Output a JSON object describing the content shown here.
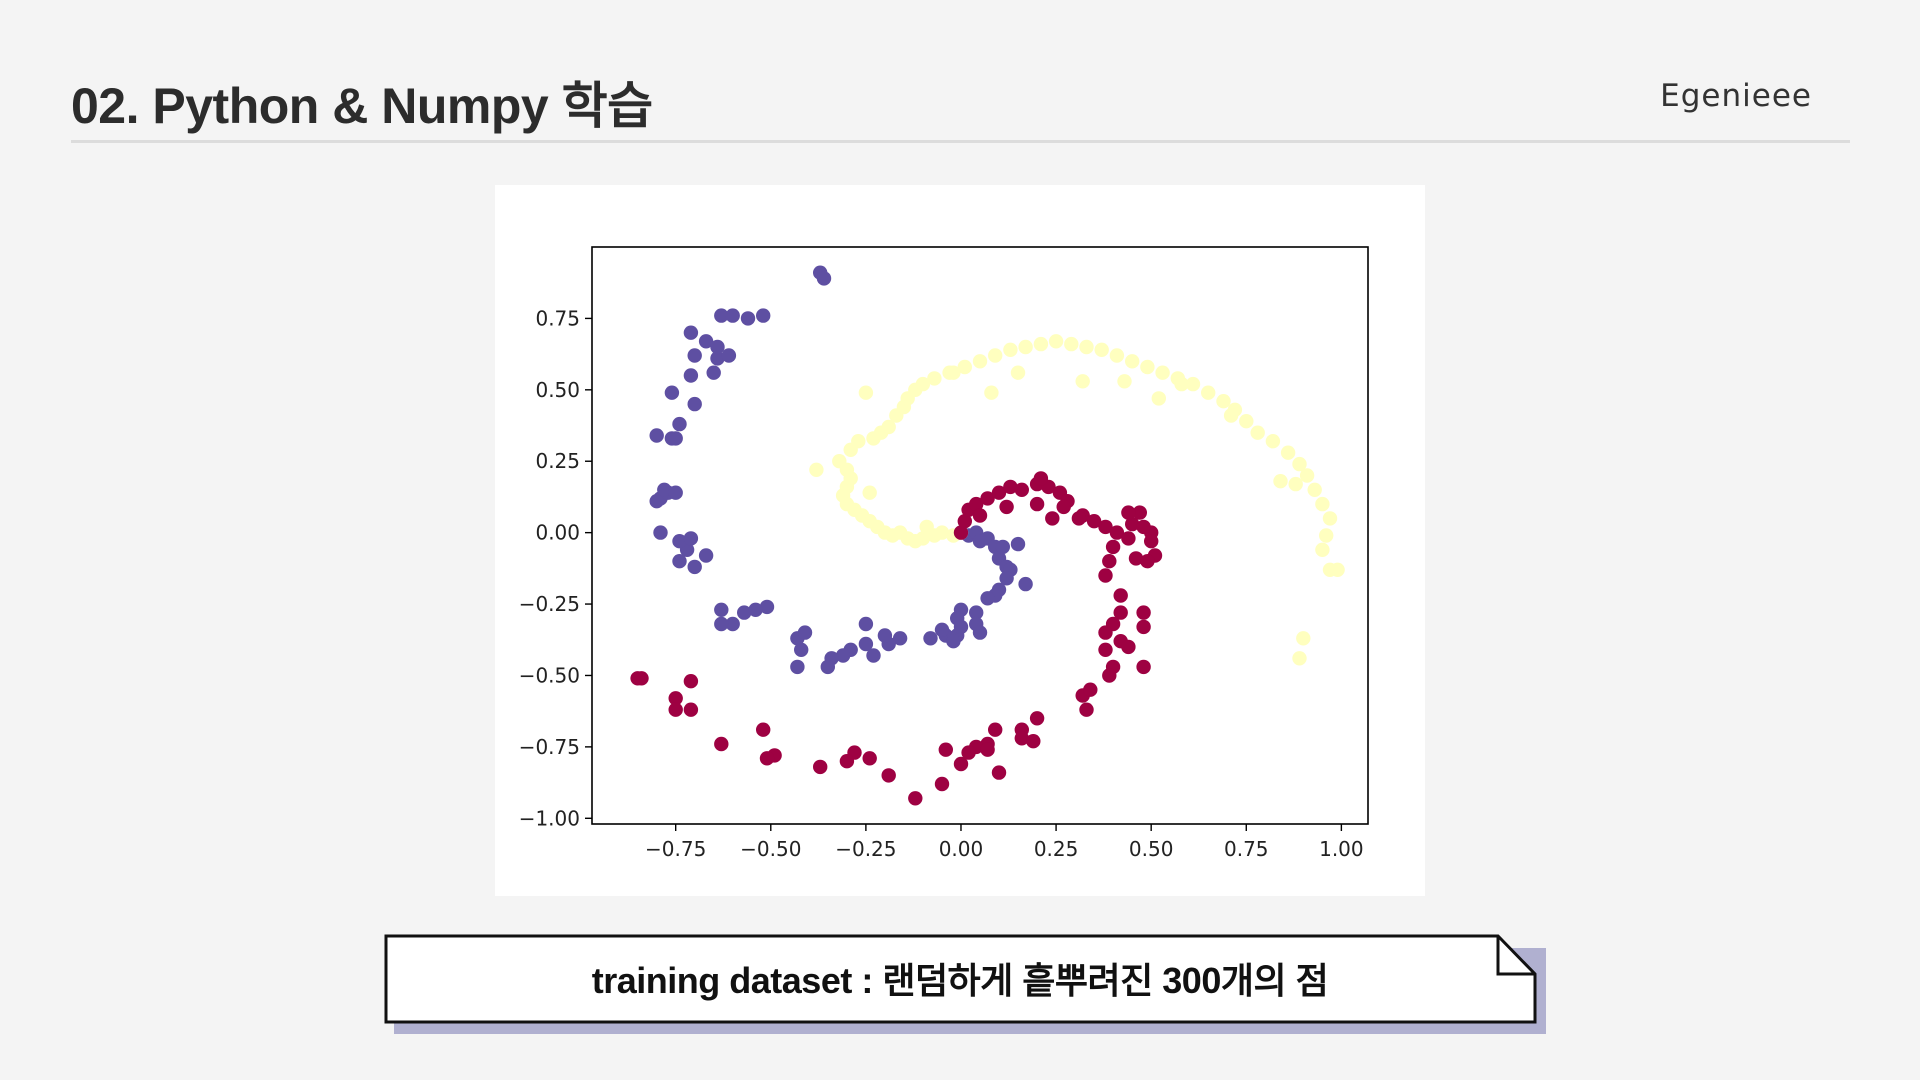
{
  "header": {
    "title": "02. Python & Numpy 학습",
    "brand": "Egenieee"
  },
  "caption": {
    "text": "training dataset : 랜덤하게 흩뿌려진 300개의 점"
  },
  "colors": {
    "background": "#f4f4f4",
    "purple": "#5e4fa2",
    "yellow": "#ffffbf",
    "crimson": "#9e0142",
    "caption_shadow": "#b0b0d0"
  },
  "chart_data": {
    "type": "scatter",
    "title": "",
    "xlabel": "",
    "ylabel": "",
    "xlim": [
      -0.97,
      1.07
    ],
    "ylim": [
      -1.02,
      1.0
    ],
    "xticks": [
      -0.75,
      -0.5,
      -0.25,
      0.0,
      0.25,
      0.5,
      0.75,
      1.0
    ],
    "xtick_labels": [
      "−0.75",
      "−0.50",
      "−0.25",
      "0.00",
      "0.25",
      "0.50",
      "0.75",
      "1.00"
    ],
    "yticks": [
      0.75,
      0.5,
      0.25,
      0.0,
      -0.25,
      -0.5,
      -0.75,
      -1.0
    ],
    "ytick_labels": [
      "0.75",
      "0.50",
      "0.25",
      "0.00",
      "−0.25",
      "−0.50",
      "−0.75",
      "−1.00"
    ],
    "grid": false,
    "series": [
      {
        "color": "#5e4fa2",
        "points": [
          [
            0.0,
            0.0
          ],
          [
            0.02,
            -0.01
          ],
          [
            0.04,
            0.0
          ],
          [
            0.05,
            -0.03
          ],
          [
            0.07,
            -0.02
          ],
          [
            0.09,
            -0.05
          ],
          [
            0.1,
            -0.09
          ],
          [
            0.11,
            -0.05
          ],
          [
            0.12,
            -0.12
          ],
          [
            0.13,
            -0.13
          ],
          [
            0.15,
            -0.04
          ],
          [
            0.17,
            -0.18
          ],
          [
            0.12,
            -0.16
          ],
          [
            0.1,
            -0.2
          ],
          [
            0.09,
            -0.22
          ],
          [
            0.07,
            -0.23
          ],
          [
            0.04,
            -0.28
          ],
          [
            0.0,
            -0.27
          ],
          [
            -0.01,
            -0.3
          ],
          [
            0.04,
            -0.32
          ],
          [
            0.05,
            -0.35
          ],
          [
            -0.01,
            -0.36
          ],
          [
            -0.04,
            -0.36
          ],
          [
            -0.05,
            -0.34
          ],
          [
            -0.02,
            -0.38
          ],
          [
            0.0,
            -0.33
          ],
          [
            -0.08,
            -0.37
          ],
          [
            -0.16,
            -0.37
          ],
          [
            -0.19,
            -0.39
          ],
          [
            -0.2,
            -0.36
          ],
          [
            -0.23,
            -0.43
          ],
          [
            -0.25,
            -0.39
          ],
          [
            -0.25,
            -0.32
          ],
          [
            -0.29,
            -0.41
          ],
          [
            -0.31,
            -0.43
          ],
          [
            -0.34,
            -0.44
          ],
          [
            -0.35,
            -0.47
          ],
          [
            -0.43,
            -0.47
          ],
          [
            -0.42,
            -0.41
          ],
          [
            -0.43,
            -0.37
          ],
          [
            -0.41,
            -0.35
          ],
          [
            -0.51,
            -0.26
          ],
          [
            -0.54,
            -0.27
          ],
          [
            -0.57,
            -0.28
          ],
          [
            -0.6,
            -0.32
          ],
          [
            -0.63,
            -0.27
          ],
          [
            -0.63,
            -0.32
          ],
          [
            -0.74,
            -0.1
          ],
          [
            -0.7,
            -0.12
          ],
          [
            -0.67,
            -0.08
          ],
          [
            -0.72,
            -0.06
          ],
          [
            -0.74,
            -0.03
          ],
          [
            -0.71,
            -0.02
          ],
          [
            -0.79,
            0.0
          ],
          [
            -0.77,
            0.14
          ],
          [
            -0.79,
            0.12
          ],
          [
            -0.8,
            0.11
          ],
          [
            -0.78,
            0.15
          ],
          [
            -0.75,
            0.14
          ],
          [
            -0.76,
            0.33
          ],
          [
            -0.74,
            0.38
          ],
          [
            -0.75,
            0.33
          ],
          [
            -0.8,
            0.34
          ],
          [
            -0.7,
            0.45
          ],
          [
            -0.76,
            0.49
          ],
          [
            -0.7,
            0.62
          ],
          [
            -0.71,
            0.55
          ],
          [
            -0.65,
            0.56
          ],
          [
            -0.64,
            0.61
          ],
          [
            -0.67,
            0.67
          ],
          [
            -0.64,
            0.65
          ],
          [
            -0.71,
            0.7
          ],
          [
            -0.63,
            0.76
          ],
          [
            -0.6,
            0.76
          ],
          [
            -0.56,
            0.75
          ],
          [
            -0.52,
            0.76
          ],
          [
            -0.37,
            0.91
          ],
          [
            -0.36,
            0.89
          ],
          [
            -0.61,
            0.62
          ]
        ]
      },
      {
        "color": "#ffffbf",
        "points": [
          [
            0.0,
            0.0
          ],
          [
            -0.02,
            -0.01
          ],
          [
            -0.05,
            0.0
          ],
          [
            -0.07,
            -0.01
          ],
          [
            -0.1,
            -0.02
          ],
          [
            -0.12,
            -0.03
          ],
          [
            -0.14,
            -0.02
          ],
          [
            -0.16,
            0.0
          ],
          [
            -0.18,
            -0.01
          ],
          [
            -0.2,
            0.0
          ],
          [
            -0.22,
            0.02
          ],
          [
            -0.24,
            0.04
          ],
          [
            -0.26,
            0.06
          ],
          [
            -0.28,
            0.08
          ],
          [
            -0.3,
            0.1
          ],
          [
            -0.31,
            0.13
          ],
          [
            -0.3,
            0.16
          ],
          [
            -0.29,
            0.19
          ],
          [
            -0.3,
            0.22
          ],
          [
            -0.32,
            0.25
          ],
          [
            -0.29,
            0.29
          ],
          [
            -0.27,
            0.32
          ],
          [
            -0.23,
            0.33
          ],
          [
            -0.21,
            0.35
          ],
          [
            -0.19,
            0.37
          ],
          [
            -0.17,
            0.41
          ],
          [
            -0.15,
            0.44
          ],
          [
            -0.14,
            0.47
          ],
          [
            -0.12,
            0.5
          ],
          [
            -0.1,
            0.52
          ],
          [
            -0.07,
            0.54
          ],
          [
            -0.03,
            0.56
          ],
          [
            0.01,
            0.58
          ],
          [
            0.05,
            0.6
          ],
          [
            0.09,
            0.62
          ],
          [
            0.13,
            0.64
          ],
          [
            0.17,
            0.65
          ],
          [
            0.21,
            0.66
          ],
          [
            0.25,
            0.67
          ],
          [
            0.29,
            0.66
          ],
          [
            0.33,
            0.65
          ],
          [
            0.37,
            0.64
          ],
          [
            0.41,
            0.62
          ],
          [
            0.45,
            0.6
          ],
          [
            0.49,
            0.58
          ],
          [
            0.53,
            0.56
          ],
          [
            0.57,
            0.54
          ],
          [
            0.61,
            0.52
          ],
          [
            0.65,
            0.49
          ],
          [
            0.69,
            0.46
          ],
          [
            0.72,
            0.43
          ],
          [
            0.75,
            0.39
          ],
          [
            0.78,
            0.35
          ],
          [
            0.82,
            0.32
          ],
          [
            0.86,
            0.28
          ],
          [
            0.89,
            0.24
          ],
          [
            0.91,
            0.2
          ],
          [
            0.93,
            0.15
          ],
          [
            0.95,
            0.1
          ],
          [
            0.97,
            0.05
          ],
          [
            0.96,
            -0.01
          ],
          [
            0.95,
            -0.06
          ],
          [
            0.97,
            -0.13
          ],
          [
            0.99,
            -0.13
          ],
          [
            0.9,
            -0.37
          ],
          [
            0.89,
            -0.44
          ],
          [
            -0.38,
            0.22
          ],
          [
            -0.25,
            0.49
          ],
          [
            0.08,
            0.49
          ],
          [
            0.32,
            0.53
          ],
          [
            0.52,
            0.47
          ],
          [
            0.71,
            0.41
          ],
          [
            0.84,
            0.18
          ],
          [
            0.88,
            0.17
          ],
          [
            -0.02,
            0.56
          ],
          [
            0.15,
            0.56
          ],
          [
            0.43,
            0.53
          ],
          [
            0.58,
            0.52
          ],
          [
            -0.24,
            0.14
          ],
          [
            -0.09,
            0.02
          ]
        ]
      },
      {
        "color": "#9e0142",
        "points": [
          [
            0.0,
            0.0
          ],
          [
            0.01,
            0.04
          ],
          [
            0.02,
            0.08
          ],
          [
            0.04,
            0.1
          ],
          [
            0.07,
            0.12
          ],
          [
            0.1,
            0.14
          ],
          [
            0.13,
            0.16
          ],
          [
            0.16,
            0.15
          ],
          [
            0.2,
            0.17
          ],
          [
            0.23,
            0.16
          ],
          [
            0.26,
            0.14
          ],
          [
            0.28,
            0.11
          ],
          [
            0.32,
            0.06
          ],
          [
            0.35,
            0.04
          ],
          [
            0.38,
            0.02
          ],
          [
            0.41,
            0.0
          ],
          [
            0.45,
            0.03
          ],
          [
            0.47,
            0.07
          ],
          [
            0.5,
            0.0
          ],
          [
            0.5,
            -0.03
          ],
          [
            0.51,
            -0.08
          ],
          [
            0.46,
            -0.09
          ],
          [
            0.49,
            -0.1
          ],
          [
            0.39,
            -0.1
          ],
          [
            0.38,
            -0.15
          ],
          [
            0.42,
            -0.22
          ],
          [
            0.42,
            -0.28
          ],
          [
            0.48,
            -0.28
          ],
          [
            0.48,
            -0.33
          ],
          [
            0.4,
            -0.32
          ],
          [
            0.42,
            -0.38
          ],
          [
            0.38,
            -0.41
          ],
          [
            0.4,
            -0.47
          ],
          [
            0.39,
            -0.5
          ],
          [
            0.48,
            -0.47
          ],
          [
            0.32,
            -0.57
          ],
          [
            0.33,
            -0.62
          ],
          [
            0.2,
            -0.65
          ],
          [
            0.16,
            -0.69
          ],
          [
            0.16,
            -0.72
          ],
          [
            0.09,
            -0.69
          ],
          [
            0.07,
            -0.74
          ],
          [
            0.04,
            -0.75
          ],
          [
            0.07,
            -0.76
          ],
          [
            0.0,
            -0.81
          ],
          [
            0.1,
            -0.84
          ],
          [
            -0.04,
            -0.76
          ],
          [
            -0.05,
            -0.88
          ],
          [
            -0.12,
            -0.93
          ],
          [
            -0.19,
            -0.85
          ],
          [
            -0.28,
            -0.77
          ],
          [
            -0.3,
            -0.8
          ],
          [
            -0.37,
            -0.82
          ],
          [
            -0.49,
            -0.78
          ],
          [
            -0.51,
            -0.79
          ],
          [
            -0.52,
            -0.69
          ],
          [
            -0.63,
            -0.74
          ],
          [
            -0.71,
            -0.62
          ],
          [
            -0.75,
            -0.58
          ],
          [
            -0.75,
            -0.62
          ],
          [
            -0.84,
            -0.51
          ],
          [
            -0.85,
            -0.51
          ],
          [
            -0.71,
            -0.52
          ],
          [
            0.27,
            0.09
          ],
          [
            0.21,
            0.19
          ],
          [
            0.12,
            0.09
          ],
          [
            0.05,
            0.06
          ],
          [
            0.31,
            0.05
          ],
          [
            0.44,
            0.07
          ],
          [
            0.4,
            -0.05
          ],
          [
            0.44,
            -0.02
          ],
          [
            0.38,
            -0.35
          ],
          [
            0.44,
            -0.4
          ],
          [
            0.34,
            -0.55
          ],
          [
            0.19,
            -0.73
          ],
          [
            0.02,
            -0.77
          ],
          [
            -0.24,
            -0.79
          ],
          [
            0.24,
            0.05
          ],
          [
            0.2,
            0.1
          ],
          [
            0.48,
            0.02
          ]
        ]
      }
    ]
  }
}
